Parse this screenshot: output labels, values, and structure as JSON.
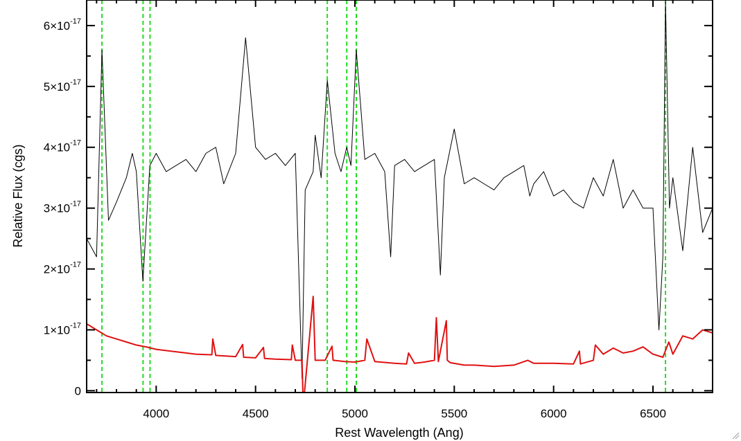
{
  "chart_data": {
    "type": "line",
    "title": "",
    "xlabel": "Rest Wavelength (Ang)",
    "ylabel": "Relative Flux (cgs)",
    "xlim": [
      3650,
      6800
    ],
    "ylim": [
      -3e-19,
      6.42e-17
    ],
    "x_ticks": [
      4000,
      4500,
      5000,
      5500,
      6000,
      6500
    ],
    "x_tick_labels": [
      "4000",
      "4500",
      "5000",
      "5500",
      "6000",
      "6500"
    ],
    "y_ticks": [
      0,
      1e-17,
      2e-17,
      3e-17,
      4e-17,
      5e-17,
      6e-17
    ],
    "y_tick_labels": [
      {
        "mantissa": "0",
        "exponent": ""
      },
      {
        "mantissa": "1×10",
        "exponent": "-17"
      },
      {
        "mantissa": "2×10",
        "exponent": "-17"
      },
      {
        "mantissa": "3×10",
        "exponent": "-17"
      },
      {
        "mantissa": "4×10",
        "exponent": "-17"
      },
      {
        "mantissa": "5×10",
        "exponent": "-17"
      },
      {
        "mantissa": "6×10",
        "exponent": "-17"
      }
    ],
    "grid": false,
    "legend": "none",
    "series": [
      {
        "role": "spectrum",
        "color": "#000000",
        "x": [
          3650,
          3700,
          3727,
          3760,
          3800,
          3850,
          3880,
          3900,
          3933,
          3968,
          4000,
          4050,
          4100,
          4150,
          4200,
          4250,
          4300,
          4340,
          4400,
          4450,
          4500,
          4550,
          4600,
          4650,
          4700,
          4734,
          4750,
          4790,
          4800,
          4830,
          4861,
          4900,
          4930,
          4959,
          4980,
          5007,
          5050,
          5100,
          5150,
          5180,
          5200,
          5250,
          5300,
          5350,
          5400,
          5430,
          5450,
          5500,
          5550,
          5600,
          5650,
          5700,
          5750,
          5800,
          5850,
          5880,
          5900,
          5950,
          6000,
          6050,
          6100,
          6150,
          6200,
          6250,
          6300,
          6350,
          6400,
          6450,
          6500,
          6530,
          6550,
          6563,
          6583,
          6600,
          6650,
          6700,
          6750,
          6800
        ],
        "values": [
          2.5e-17,
          2.2e-17,
          5.6e-17,
          2.8e-17,
          3.1e-17,
          3.5e-17,
          3.9e-17,
          3.6e-17,
          1.8e-17,
          3.7e-17,
          3.9e-17,
          3.6e-17,
          3.7e-17,
          3.8e-17,
          3.6e-17,
          3.9e-17,
          4e-17,
          3.4e-17,
          3.9e-17,
          5.8e-17,
          4e-17,
          3.8e-17,
          3.9e-17,
          3.7e-17,
          3.9e-17,
          2e-18,
          3.3e-17,
          3.6e-17,
          4.2e-17,
          3.5e-17,
          5.1e-17,
          3.9e-17,
          3.6e-17,
          4e-17,
          3.7e-17,
          5.6e-17,
          3.8e-17,
          3.9e-17,
          3.6e-17,
          2.2e-17,
          3.7e-17,
          3.8e-17,
          3.6e-17,
          3.7e-17,
          3.8e-17,
          1.9e-17,
          3.5e-17,
          4.3e-17,
          3.4e-17,
          3.5e-17,
          3.4e-17,
          3.3e-17,
          3.5e-17,
          3.6e-17,
          3.7e-17,
          3.2e-17,
          3.4e-17,
          3.6e-17,
          3.2e-17,
          3.3e-17,
          3.1e-17,
          3e-17,
          3.5e-17,
          3.2e-17,
          3.8e-17,
          3e-17,
          3.3e-17,
          3e-17,
          3e-17,
          1e-17,
          2.2e-17,
          6.4e-17,
          3e-17,
          3.5e-17,
          2.3e-17,
          4e-17,
          2.6e-17,
          3e-17
        ]
      },
      {
        "role": "error",
        "color": "#e01010",
        "x": [
          3650,
          3700,
          3750,
          3800,
          3850,
          3900,
          3950,
          4000,
          4100,
          4200,
          4280,
          4285,
          4300,
          4400,
          4435,
          4440,
          4500,
          4540,
          4545,
          4600,
          4680,
          4685,
          4700,
          4734,
          4740,
          4790,
          4800,
          4850,
          4885,
          4890,
          4950,
          5000,
          5050,
          5060,
          5100,
          5200,
          5260,
          5270,
          5300,
          5350,
          5400,
          5410,
          5420,
          5460,
          5465,
          5480,
          5550,
          5600,
          5700,
          5800,
          5870,
          5900,
          6000,
          6100,
          6130,
          6135,
          6200,
          6210,
          6250,
          6300,
          6350,
          6400,
          6450,
          6500,
          6550,
          6580,
          6600,
          6650,
          6700,
          6750,
          6800
        ],
        "values": [
          1.1e-17,
          1e-17,
          9e-18,
          8.5e-18,
          8e-18,
          7.5e-18,
          7.2e-18,
          6.8e-18,
          6.4e-18,
          6e-18,
          5.9e-18,
          8.5e-18,
          5.8e-18,
          5.6e-18,
          7.6e-18,
          5.5e-18,
          5.4e-18,
          7.1e-18,
          5.3e-18,
          5.2e-18,
          5.1e-18,
          7.5e-18,
          5e-18,
          5e-18,
          -2.5e-18,
          1.55e-17,
          5e-18,
          5e-18,
          7.3e-18,
          5e-18,
          4.8e-18,
          4.7e-18,
          5e-18,
          8.5e-18,
          4.8e-18,
          4.5e-18,
          4.4e-18,
          6.2e-18,
          4.5e-18,
          4.7e-18,
          5e-18,
          1.2e-17,
          4.8e-18,
          1.15e-17,
          5e-18,
          4.6e-18,
          4.2e-18,
          4.2e-18,
          4e-18,
          4.2e-18,
          5e-18,
          4.5e-18,
          4.5e-18,
          4.4e-18,
          6.5e-18,
          4.4e-18,
          5e-18,
          7.5e-18,
          6e-18,
          7e-18,
          6.2e-18,
          6.5e-18,
          7.2e-18,
          6e-18,
          5.5e-18,
          8e-18,
          6e-18,
          9e-18,
          8.5e-18,
          1e-17,
          9.5e-18
        ]
      }
    ],
    "reference_lines": {
      "color": "#22dd22",
      "style": "dashed",
      "x": [
        3727,
        3934,
        3969,
        4861,
        4959,
        5007,
        6563
      ]
    }
  }
}
